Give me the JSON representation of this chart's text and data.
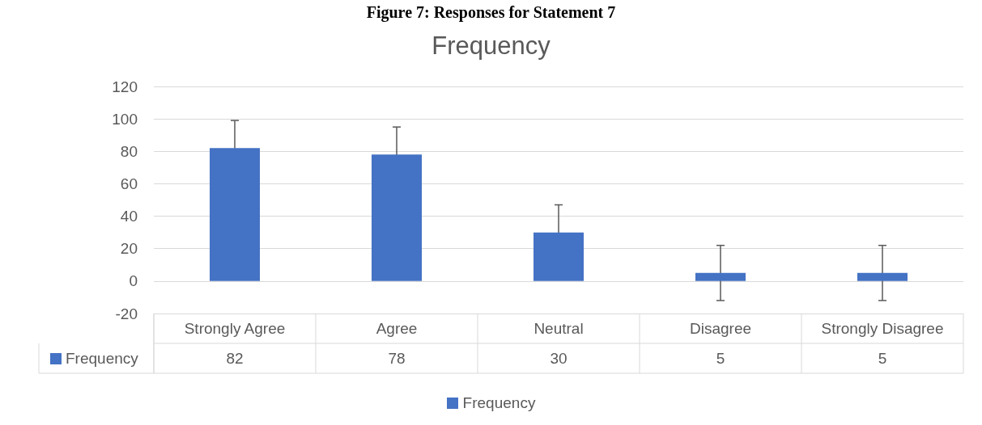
{
  "chart_data": {
    "type": "bar",
    "title": "Figure 7: Responses for Statement 7",
    "subtitle": "Frequency",
    "categories": [
      "Strongly Agree",
      "Agree",
      "Neutral",
      "Disagree",
      "Strongly Disagree"
    ],
    "series": [
      {
        "name": "Frequency",
        "color": "#4472c4",
        "values": [
          82,
          78,
          30,
          5,
          5
        ],
        "errors": [
          17,
          17,
          17,
          17,
          17
        ]
      }
    ],
    "ylim": [
      -20,
      120
    ],
    "yticks": [
      -20,
      0,
      20,
      40,
      60,
      80,
      100,
      120
    ],
    "grid": "y",
    "legend": "bottom",
    "data_labels": true
  }
}
